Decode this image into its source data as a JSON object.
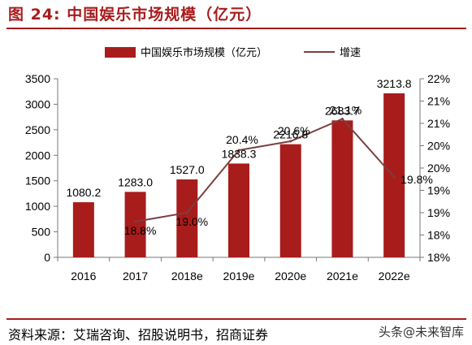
{
  "figure": {
    "title": "图 24:  中国娱乐市场规模（亿元）",
    "source": "资料来源：艾瑞咨询、招股说明书，招商证券",
    "watermark": "头条@未来智库"
  },
  "colors": {
    "bar": "#a81c1c",
    "line": "#7b3f3f",
    "accent": "#a81c1c"
  },
  "chart_data": {
    "type": "bar",
    "categories": [
      "2016",
      "2017",
      "2018e",
      "2019e",
      "2020e",
      "2021e",
      "2022e"
    ],
    "series": [
      {
        "name": "中国娱乐市场规模（亿元）",
        "type": "bar",
        "axis": "left",
        "values": [
          1080.2,
          1283.0,
          1527.0,
          1838.3,
          2216.8,
          2683.7,
          3213.8
        ],
        "labels": [
          "1080.2",
          "1283.0",
          "1527.0",
          "1838.3",
          "2216.8",
          "2683.7",
          "3213.8"
        ]
      },
      {
        "name": "增速",
        "type": "line",
        "axis": "right",
        "values": [
          null,
          18.8,
          19.0,
          20.4,
          20.6,
          21.1,
          19.8
        ],
        "labels": [
          null,
          "18.8%",
          "19.0%",
          "20.4%",
          "20.6%",
          "21.1%",
          "19.8%"
        ]
      }
    ],
    "y_left": {
      "min": 0,
      "max": 3500,
      "ticks": [
        "0",
        "500",
        "1000",
        "1500",
        "2000",
        "2500",
        "3000",
        "3500"
      ]
    },
    "y_right": {
      "min": 18,
      "max": 22,
      "ticks": [
        "18%",
        "18%",
        "19%",
        "19%",
        "20%",
        "20%",
        "21%",
        "21%",
        "22%"
      ]
    },
    "legend_position": "top",
    "grid": false
  }
}
